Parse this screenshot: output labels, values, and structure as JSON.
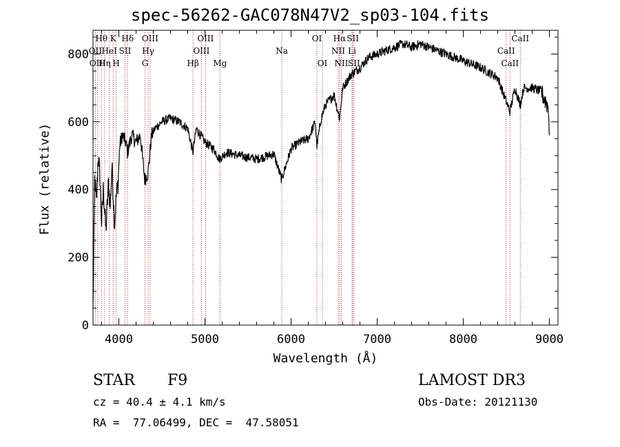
{
  "chart_data": {
    "type": "line",
    "title": "spec-56262-GAC078N47V2_sp03-104.fits",
    "xlabel": "Wavelength (Å)",
    "ylabel": "Flux (relative)",
    "xlim": [
      3700,
      9100
    ],
    "ylim": [
      0,
      870
    ],
    "x_ticks": [
      4000,
      5000,
      6000,
      7000,
      8000,
      9000
    ],
    "y_ticks": [
      0,
      200,
      400,
      600,
      800
    ],
    "line_color": "#000000",
    "marker_color": "#b22222",
    "spectrum_anchors": [
      [
        3700,
        40
      ],
      [
        3720,
        430
      ],
      [
        3740,
        360
      ],
      [
        3760,
        500
      ],
      [
        3780,
        440
      ],
      [
        3800,
        300
      ],
      [
        3820,
        400
      ],
      [
        3850,
        280
      ],
      [
        3880,
        420
      ],
      [
        3900,
        350
      ],
      [
        3920,
        470
      ],
      [
        3950,
        300
      ],
      [
        3970,
        380
      ],
      [
        3990,
        420
      ],
      [
        4010,
        530
      ],
      [
        4040,
        560
      ],
      [
        4080,
        540
      ],
      [
        4100,
        510
      ],
      [
        4150,
        560
      ],
      [
        4200,
        540
      ],
      [
        4250,
        560
      ],
      [
        4300,
        430
      ],
      [
        4340,
        450
      ],
      [
        4380,
        560
      ],
      [
        4420,
        580
      ],
      [
        4500,
        600
      ],
      [
        4600,
        610
      ],
      [
        4700,
        600
      ],
      [
        4800,
        580
      ],
      [
        4860,
        510
      ],
      [
        4900,
        580
      ],
      [
        4950,
        560
      ],
      [
        5000,
        540
      ],
      [
        5100,
        520
      ],
      [
        5170,
        490
      ],
      [
        5250,
        510
      ],
      [
        5400,
        500
      ],
      [
        5600,
        490
      ],
      [
        5800,
        505
      ],
      [
        5890,
        430
      ],
      [
        5950,
        480
      ],
      [
        6000,
        520
      ],
      [
        6100,
        540
      ],
      [
        6200,
        550
      ],
      [
        6280,
        600
      ],
      [
        6300,
        530
      ],
      [
        6350,
        610
      ],
      [
        6400,
        650
      ],
      [
        6500,
        680
      ],
      [
        6563,
        610
      ],
      [
        6600,
        700
      ],
      [
        6700,
        740
      ],
      [
        6800,
        760
      ],
      [
        6900,
        790
      ],
      [
        7000,
        800
      ],
      [
        7100,
        810
      ],
      [
        7200,
        820
      ],
      [
        7300,
        830
      ],
      [
        7400,
        820
      ],
      [
        7500,
        830
      ],
      [
        7600,
        820
      ],
      [
        7700,
        810
      ],
      [
        7800,
        800
      ],
      [
        7900,
        790
      ],
      [
        8000,
        780
      ],
      [
        8100,
        770
      ],
      [
        8200,
        760
      ],
      [
        8300,
        745
      ],
      [
        8400,
        730
      ],
      [
        8498,
        660
      ],
      [
        8542,
        630
      ],
      [
        8600,
        700
      ],
      [
        8662,
        650
      ],
      [
        8700,
        700
      ],
      [
        8800,
        700
      ],
      [
        8900,
        690
      ],
      [
        8960,
        660
      ],
      [
        8990,
        640
      ],
      [
        9000,
        560
      ]
    ],
    "lines": [
      {
        "label": "Hθ",
        "wavelength": 3798,
        "row": 0
      },
      {
        "label": "OII",
        "wavelength": 3727,
        "row": 1
      },
      {
        "label": "OIII",
        "wavelength": 3755,
        "row": 2
      },
      {
        "label": "K",
        "wavelength": 3934,
        "row": 0
      },
      {
        "label": "HeI",
        "wavelength": 3889,
        "row": 1
      },
      {
        "label": "Hη",
        "wavelength": 3835,
        "row": 2
      },
      {
        "label": "Hδ",
        "wavelength": 4102,
        "row": 0
      },
      {
        "label": "SII",
        "wavelength": 4072,
        "row": 1
      },
      {
        "label": "H",
        "wavelength": 3969,
        "row": 2
      },
      {
        "label": "OIII",
        "wavelength": 4363,
        "row": 0
      },
      {
        "label": "Hγ",
        "wavelength": 4340,
        "row": 1
      },
      {
        "label": "G",
        "wavelength": 4304,
        "row": 2
      },
      {
        "label": "OIII",
        "wavelength": 5007,
        "row": 0
      },
      {
        "label": "OIII",
        "wavelength": 4959,
        "row": 1
      },
      {
        "label": "Hβ",
        "wavelength": 4861,
        "row": 2
      },
      {
        "label": "Mg",
        "wavelength": 5175,
        "row": 2
      },
      {
        "label": "Na",
        "wavelength": 5893,
        "row": 1
      },
      {
        "label": "OI",
        "wavelength": 6300,
        "row": 0
      },
      {
        "label": "OI",
        "wavelength": 6364,
        "row": 2
      },
      {
        "label": "Hα",
        "wavelength": 6563,
        "row": 0
      },
      {
        "label": "SII",
        "wavelength": 6716,
        "row": 0
      },
      {
        "label": "NII",
        "wavelength": 6548,
        "row": 1
      },
      {
        "label": "Li",
        "wavelength": 6708,
        "row": 1
      },
      {
        "label": "NII",
        "wavelength": 6584,
        "row": 2
      },
      {
        "label": "SII",
        "wavelength": 6731,
        "row": 2
      },
      {
        "label": "CaII",
        "wavelength": 8662,
        "row": 0
      },
      {
        "label": "CaII",
        "wavelength": 8498,
        "row": 1
      },
      {
        "label": "CaII",
        "wavelength": 8542,
        "row": 2
      }
    ]
  },
  "info": {
    "class": "STAR",
    "subclass": "F9",
    "survey": "LAMOST DR3",
    "cz": "cz = 40.4 ± 4.1 km/s",
    "obs_date": "Obs-Date: 20121130",
    "radec": "RA =  77.06499, DEC =  47.58051"
  }
}
